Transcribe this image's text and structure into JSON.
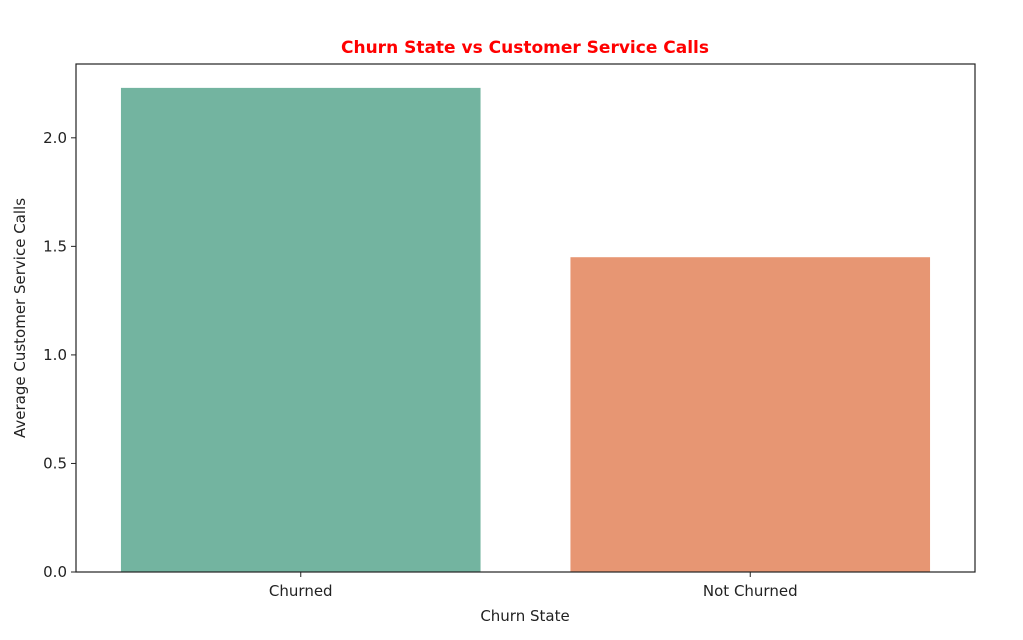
{
  "chart_data": {
    "type": "bar",
    "title": "Churn State vs Customer Service Calls",
    "xlabel": "Churn State",
    "ylabel": "Average Customer Service Calls",
    "categories": [
      "Churned",
      "Not Churned"
    ],
    "values": [
      2.23,
      1.45
    ],
    "ylim": [
      0,
      2.34
    ],
    "yticks": [
      0.0,
      0.5,
      1.0,
      1.5,
      2.0
    ],
    "ytick_labels": [
      "0.0",
      "0.5",
      "1.0",
      "1.5",
      "2.0"
    ],
    "grid": false,
    "legend": "none"
  },
  "colors": {
    "title": "#ff0000",
    "bars": [
      "#73b4a0",
      "#e79673"
    ],
    "axis": "#222222"
  }
}
